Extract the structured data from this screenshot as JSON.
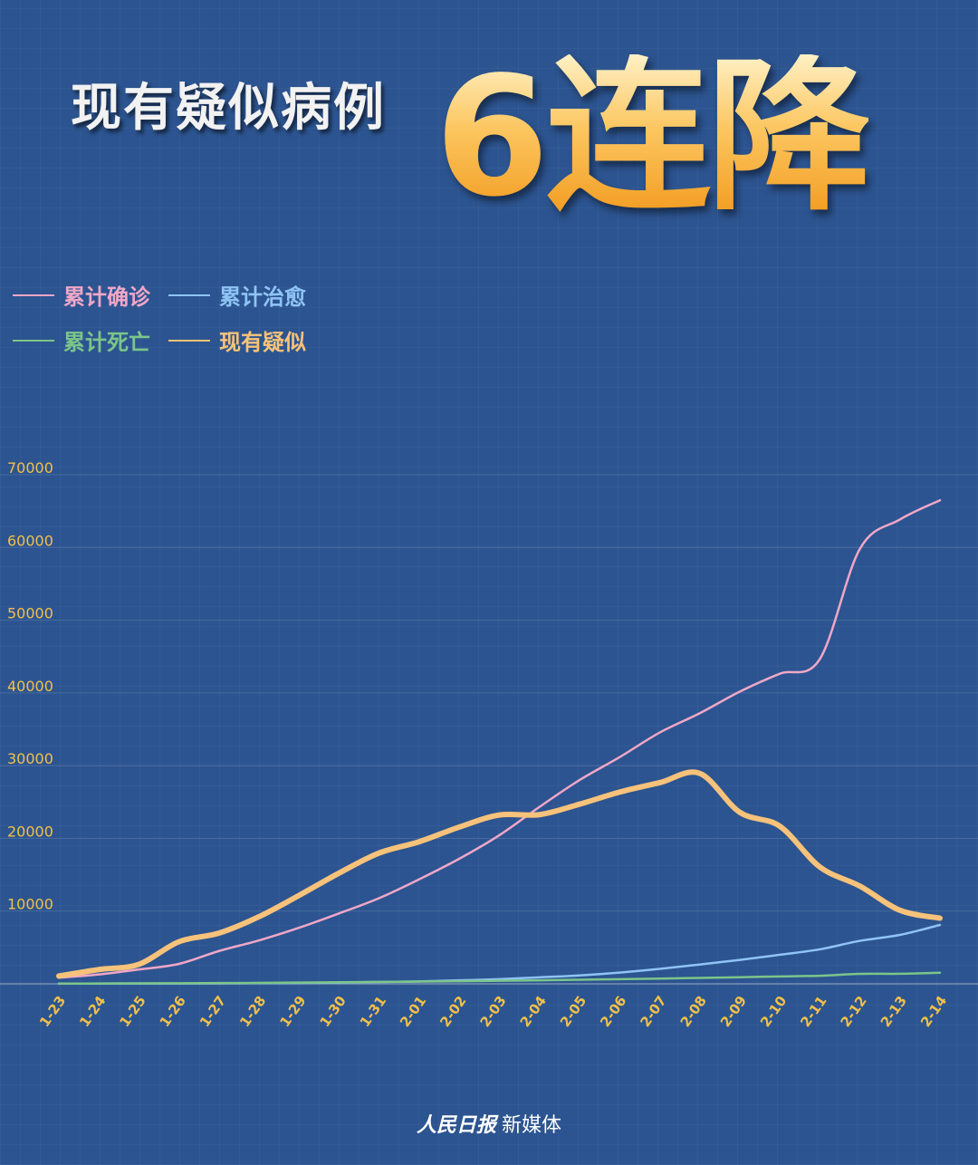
{
  "title": {
    "prefix": "现有疑似病例",
    "highlight": "6连降"
  },
  "legend": [
    {
      "label": "累计确诊",
      "color": "#f0a7c8"
    },
    {
      "label": "累计治愈",
      "color": "#8fc4f5"
    },
    {
      "label": "累计死亡",
      "color": "#7cc58a"
    },
    {
      "label": "现有疑似",
      "color": "#f7c27a"
    }
  ],
  "footer": {
    "brand": "人民日报",
    "suffix": "新媒体"
  },
  "chart_data": {
    "type": "line",
    "x": [
      "1-23",
      "1-24",
      "1-25",
      "1-26",
      "1-27",
      "1-28",
      "1-29",
      "1-30",
      "1-31",
      "2-01",
      "2-02",
      "2-03",
      "2-04",
      "2-05",
      "2-06",
      "2-07",
      "2-08",
      "2-09",
      "2-10",
      "2-11",
      "2-12",
      "2-13",
      "2-14"
    ],
    "yticks": [
      10000,
      20000,
      30000,
      40000,
      50000,
      60000,
      70000
    ],
    "ylim": [
      0,
      72000
    ],
    "grid": true,
    "legend_position": "top-left",
    "series": [
      {
        "name": "累计确诊",
        "color": "#f0a7c8",
        "width": 2.5,
        "values": [
          830,
          1287,
          1975,
          2744,
          4515,
          5974,
          7711,
          9692,
          11791,
          14380,
          17205,
          20438,
          24324,
          28018,
          31161,
          34546,
          37198,
          40171,
          42638,
          44653,
          59804,
          63851,
          66492
        ]
      },
      {
        "name": "累计治愈",
        "color": "#8fc4f5",
        "width": 2.5,
        "values": [
          34,
          38,
          49,
          51,
          60,
          103,
          124,
          171,
          243,
          328,
          475,
          632,
          892,
          1153,
          1540,
          2050,
          2649,
          3281,
          3996,
          4740,
          5911,
          6723,
          8096
        ]
      },
      {
        "name": "累计死亡",
        "color": "#7cc58a",
        "width": 2.5,
        "values": [
          25,
          41,
          56,
          80,
          106,
          132,
          170,
          213,
          259,
          304,
          361,
          425,
          490,
          563,
          636,
          722,
          811,
          908,
          1016,
          1113,
          1367,
          1380,
          1523
        ]
      },
      {
        "name": "现有疑似",
        "color": "#f7c27a",
        "width": 6,
        "values": [
          1072,
          1965,
          2684,
          5794,
          6973,
          9239,
          12167,
          15238,
          17988,
          19544,
          21558,
          23214,
          23260,
          24702,
          26359,
          27657,
          28942,
          23589,
          21675,
          16067,
          13435,
          10109,
          9028
        ]
      }
    ]
  }
}
